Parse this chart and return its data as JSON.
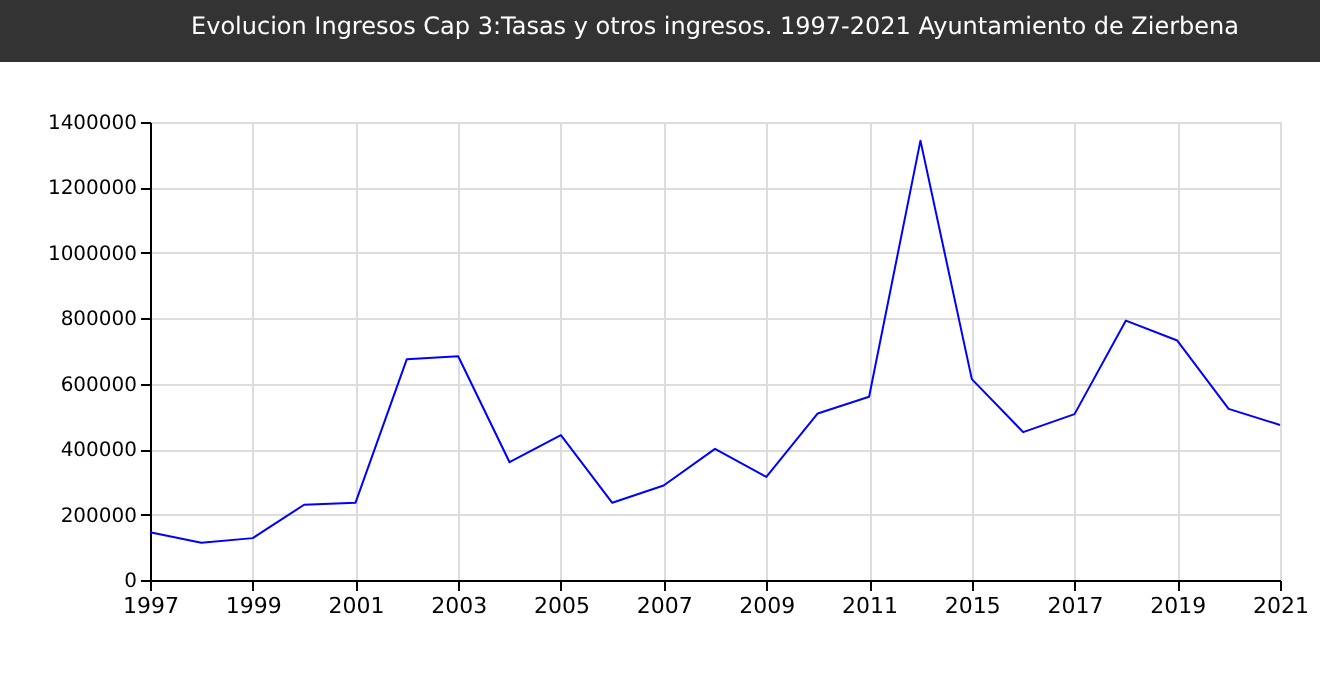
{
  "chart_data": {
    "type": "line",
    "title": "Evolucion Ingresos Cap 3:Tasas y otros ingresos. 1997-2021 Ayuntamiento de Zierbena",
    "categories": [
      "1997",
      null,
      "1999",
      null,
      "2001",
      null,
      "2003",
      null,
      "2005",
      null,
      "2007",
      null,
      "2009",
      null,
      "2011",
      null,
      "2015",
      null,
      "2017",
      null,
      "2019",
      null,
      "2021"
    ],
    "series": [
      {
        "color": "#0000ff",
        "values": [
          146000,
          114000,
          128000,
          230000,
          236000,
          675000,
          684000,
          360000,
          443000,
          236000,
          289000,
          401000,
          315000,
          509000,
          560000,
          1343000,
          614000,
          452000,
          507000,
          793000,
          732000,
          523000,
          474000
        ]
      }
    ],
    "ylim": [
      0,
      1400000
    ],
    "yticks": [
      0,
      200000,
      400000,
      600000,
      800000,
      1000000,
      1200000,
      1400000
    ],
    "grid": true,
    "marker": "none",
    "line_style": "solid"
  }
}
